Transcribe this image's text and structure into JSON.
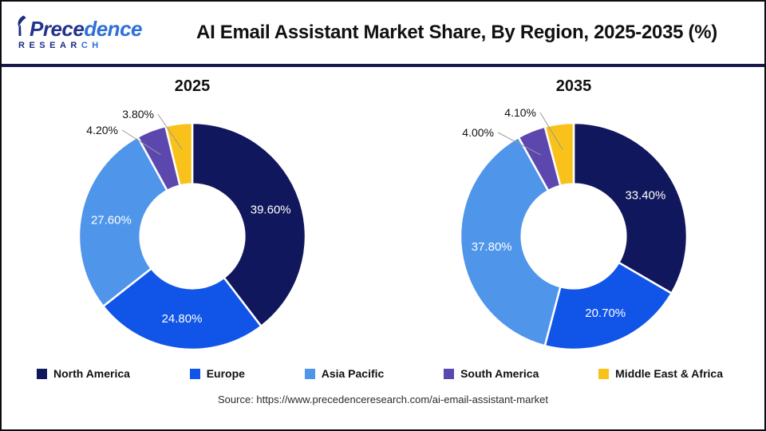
{
  "header": {
    "logo": {
      "word_a": "Prece",
      "word_b": "dence",
      "sub_a": "RESEAR",
      "sub_b": "CH"
    },
    "title": "AI Email Assistant Market Share, By Region, 2025-2035 (%)"
  },
  "colors": {
    "north_america": "#11175C",
    "europe": "#1155E8",
    "asia_pacific": "#4F95EA",
    "south_america": "#5C47AE",
    "middle_east_africa": "#F9C21A",
    "divider": "#17174A",
    "slice_gap": "#FFFFFF",
    "callout_line": "#999999"
  },
  "legend": {
    "items": [
      {
        "label": "North America",
        "color": "#11175C"
      },
      {
        "label": "Europe",
        "color": "#1155E8"
      },
      {
        "label": "Asia Pacific",
        "color": "#4F95EA"
      },
      {
        "label": "South America",
        "color": "#5C47AE"
      },
      {
        "label": "Middle East & Africa",
        "color": "#F9C21A"
      }
    ]
  },
  "chart_data": [
    {
      "type": "pie",
      "title": "2025",
      "categories": [
        "North America",
        "Europe",
        "Asia Pacific",
        "South America",
        "Middle East & Africa"
      ],
      "values": [
        39.6,
        24.8,
        27.6,
        4.2,
        3.8
      ],
      "labels": [
        "39.60%",
        "24.80%",
        "27.60%",
        "4.20%",
        "3.80%"
      ],
      "colors": [
        "#11175C",
        "#1155E8",
        "#4F95EA",
        "#5C47AE",
        "#F9C21A"
      ],
      "start_angle": 0,
      "donut_hole_ratio": 0.46,
      "inside_label_min_pct": 10,
      "callouts": [
        {
          "index": 3,
          "text_end": [
            82,
            41
          ]
        },
        {
          "index": 4,
          "text_end": [
            127,
            21
          ]
        }
      ]
    },
    {
      "type": "pie",
      "title": "2035",
      "categories": [
        "North America",
        "Europe",
        "Asia Pacific",
        "South America",
        "Middle East & Africa"
      ],
      "values": [
        33.4,
        20.7,
        37.8,
        4.0,
        4.1
      ],
      "labels": [
        "33.40%",
        "20.70%",
        "37.80%",
        "4.00%",
        "4.10%"
      ],
      "colors": [
        "#11175C",
        "#1155E8",
        "#4F95EA",
        "#5C47AE",
        "#F9C21A"
      ],
      "start_angle": 0,
      "donut_hole_ratio": 0.46,
      "inside_label_min_pct": 10,
      "callouts": [
        {
          "index": 3,
          "text_end": [
            75,
            44
          ]
        },
        {
          "index": 4,
          "text_end": [
            128,
            19
          ]
        }
      ]
    }
  ],
  "footer": {
    "source": "Source: https://www.precedenceresearch.com/ai-email-assistant-market"
  }
}
